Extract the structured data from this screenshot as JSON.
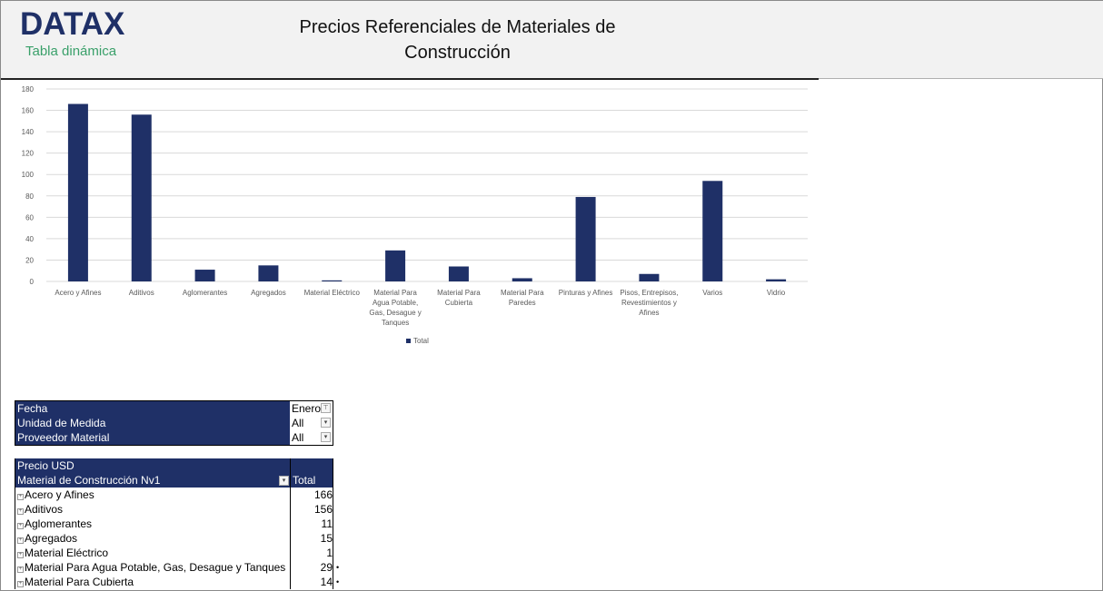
{
  "header": {
    "logo": "DATAX",
    "subtitle": "Tabla dinámica",
    "title": "Precios Referenciales de Materiales de Construcción"
  },
  "chart_data": {
    "type": "bar",
    "categories": [
      "Acero y Afines",
      "Aditivos",
      "Aglomerantes",
      "Agregados",
      "Material Eléctrico",
      "Material Para Agua Potable, Gas, Desague y Tanques",
      "Material Para Cubierta",
      "Material Para Paredes",
      "Pinturas y Afines",
      "Pisos, Entrepisos, Revestimientos y Afines",
      "Varios",
      "Vidrio"
    ],
    "series": [
      {
        "name": "Total",
        "values": [
          166,
          156,
          11,
          15,
          1,
          29,
          14,
          3,
          79,
          7,
          94,
          2
        ]
      }
    ],
    "ylim": [
      0,
      180
    ],
    "yticks": [
      0,
      20,
      40,
      60,
      80,
      100,
      120,
      140,
      160,
      180
    ],
    "grid": true,
    "legend": "bottom",
    "color": "#1f3067"
  },
  "filters": [
    {
      "label": "Fecha",
      "value": "Enero",
      "icon": "filter-icon"
    },
    {
      "label": "Unidad de Medida",
      "value": "All",
      "icon": "chevron-down-icon"
    },
    {
      "label": "Proveedor Material",
      "value": "All",
      "icon": "chevron-down-icon"
    }
  ],
  "pivot": {
    "value_header": "Precio USD",
    "row_header": "Material de Construcción Nv1",
    "col_header": "Total",
    "rows": [
      {
        "label": "Acero y Afines",
        "total": "166"
      },
      {
        "label": "Aditivos",
        "total": "156"
      },
      {
        "label": "Aglomerantes",
        "total": "11"
      },
      {
        "label": "Agregados",
        "total": "15"
      },
      {
        "label": "Material Eléctrico",
        "total": "1"
      },
      {
        "label": "Material Para Agua Potable, Gas, Desague y Tanques",
        "total": "29"
      },
      {
        "label": "Material Para Cubierta",
        "total": "14"
      }
    ]
  }
}
